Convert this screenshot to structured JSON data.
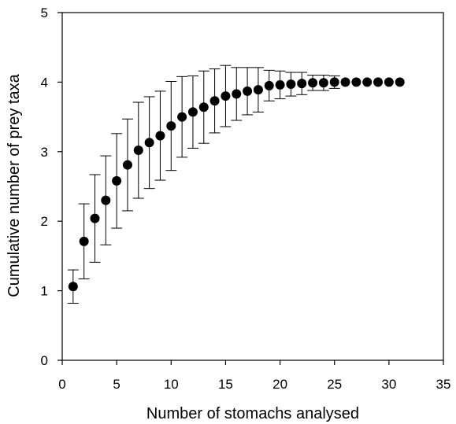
{
  "chart_data": {
    "type": "scatter",
    "title": "",
    "xlabel": "Number of stomachs analysed",
    "ylabel": "Cumulative number of prey taxa",
    "xlim": [
      0,
      35
    ],
    "ylim": [
      0,
      5
    ],
    "xticks": [
      "0",
      "5",
      "10",
      "15",
      "20",
      "25",
      "30",
      "35"
    ],
    "yticks": [
      "0",
      "1",
      "2",
      "3",
      "4",
      "5"
    ],
    "grid": false,
    "legend": "none",
    "series": [
      {
        "x": [
          1,
          2,
          3,
          4,
          5,
          6,
          7,
          8,
          9,
          10,
          11,
          12,
          13,
          14,
          15,
          16,
          17,
          18,
          19,
          20,
          21,
          22,
          23,
          24,
          25,
          26,
          27,
          28,
          29,
          30,
          31
        ],
        "y": [
          1.06,
          1.71,
          2.04,
          2.3,
          2.58,
          2.81,
          3.02,
          3.13,
          3.23,
          3.37,
          3.5,
          3.57,
          3.64,
          3.73,
          3.8,
          3.83,
          3.87,
          3.89,
          3.95,
          3.96,
          3.97,
          3.98,
          3.99,
          3.99,
          4.0,
          4.0,
          4.0,
          4.0,
          4.0,
          4.0,
          4.0
        ],
        "error": [
          0.24,
          0.54,
          0.63,
          0.64,
          0.68,
          0.66,
          0.69,
          0.66,
          0.64,
          0.64,
          0.58,
          0.52,
          0.52,
          0.46,
          0.44,
          0.38,
          0.34,
          0.32,
          0.22,
          0.2,
          0.17,
          0.16,
          0.11,
          0.11,
          0.09,
          0,
          0,
          0,
          0,
          0,
          0
        ]
      }
    ]
  }
}
